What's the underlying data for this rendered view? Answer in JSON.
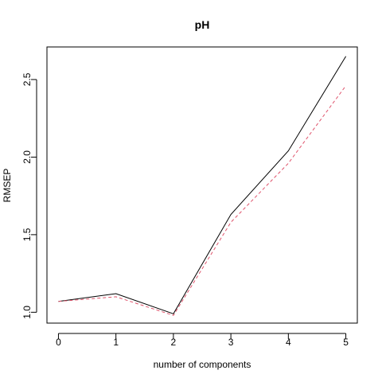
{
  "chart_data": {
    "type": "line",
    "title": "pH",
    "xlabel": "number of components",
    "ylabel": "RMSEP",
    "x": [
      0,
      1,
      2,
      3,
      4,
      5
    ],
    "xticks": [
      "0",
      "1",
      "2",
      "3",
      "4",
      "5"
    ],
    "yticks": [
      "1.0",
      "1.5",
      "2.0",
      "2.5"
    ],
    "xlim": [
      -0.2,
      5.2
    ],
    "ylim": [
      0.93,
      2.71
    ],
    "grid": false,
    "series": [
      {
        "values": [
          1.07,
          1.12,
          0.99,
          1.63,
          2.04,
          2.65
        ],
        "color": "#000000",
        "dash": "solid"
      },
      {
        "values": [
          1.07,
          1.1,
          0.98,
          1.58,
          1.96,
          2.46
        ],
        "color": "#DF536B",
        "dash": "dashed"
      }
    ]
  }
}
